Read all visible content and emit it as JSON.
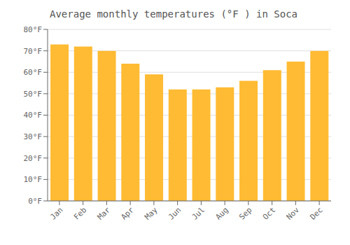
{
  "chart_data": {
    "type": "bar",
    "title": "Average monthly temperatures (°F ) in Soca",
    "categories": [
      "Jan",
      "Feb",
      "Mar",
      "Apr",
      "May",
      "Jun",
      "Jul",
      "Aug",
      "Sep",
      "Oct",
      "Nov",
      "Dec"
    ],
    "values": [
      73,
      72,
      70,
      64,
      59,
      52,
      52,
      53,
      56,
      61,
      65,
      70
    ],
    "color": "#FFBB33",
    "ylim": [
      0,
      80
    ],
    "yticks": [
      {
        "value": 0,
        "label": "0°F"
      },
      {
        "value": 10,
        "label": "10°F"
      },
      {
        "value": 20,
        "label": "20°F"
      },
      {
        "value": 30,
        "label": "30°F"
      },
      {
        "value": 40,
        "label": "40°F"
      },
      {
        "value": 50,
        "label": "50°F"
      },
      {
        "value": 60,
        "label": "60°F"
      },
      {
        "value": 70,
        "label": "70°F"
      },
      {
        "value": 80,
        "label": "80°F"
      }
    ],
    "grid": true
  }
}
